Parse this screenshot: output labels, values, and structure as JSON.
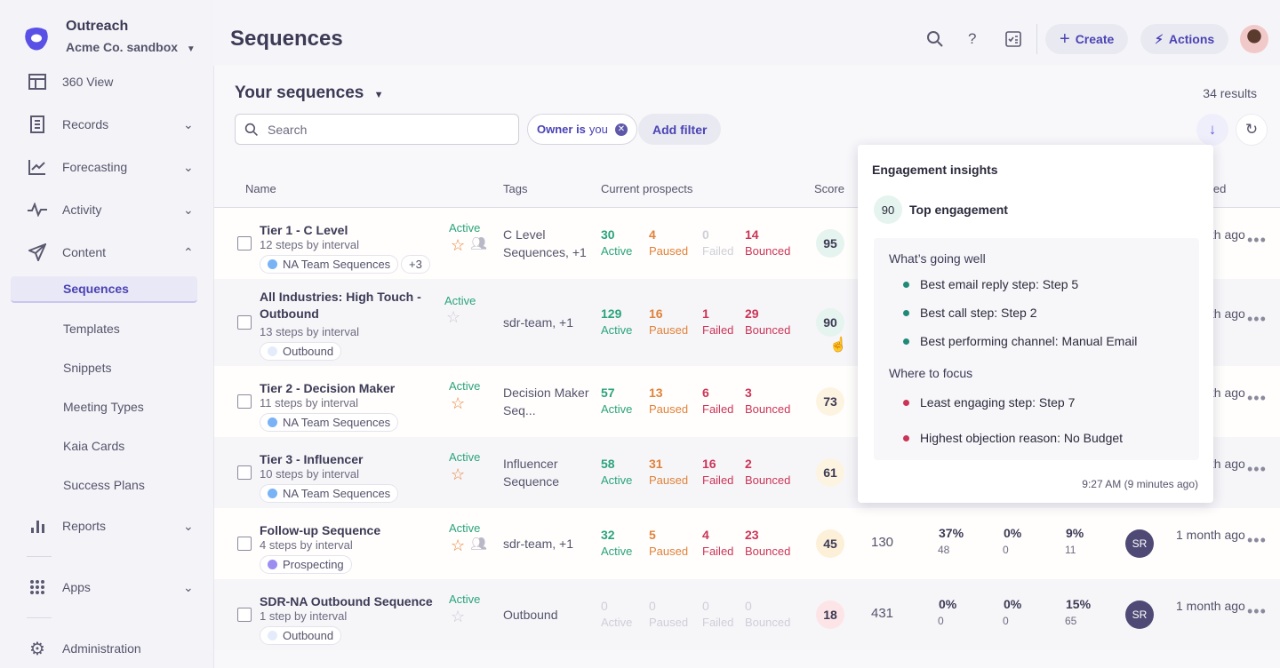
{
  "app": {
    "brand": "Outreach",
    "org": "Acme Co. sandbox"
  },
  "sidebar": {
    "items": [
      {
        "label": "360 View",
        "icon": "layout-icon"
      },
      {
        "label": "Records",
        "icon": "document-icon"
      },
      {
        "label": "Forecasting",
        "icon": "chart-line-icon"
      },
      {
        "label": "Activity",
        "icon": "pulse-icon"
      },
      {
        "label": "Content",
        "icon": "send-icon"
      },
      {
        "label": "Reports",
        "icon": "bar-chart-icon"
      },
      {
        "label": "Apps",
        "icon": "grid-icon"
      },
      {
        "label": "Administration",
        "icon": "gear-icon"
      }
    ],
    "content_sub": [
      "Sequences",
      "Templates",
      "Snippets",
      "Meeting Types",
      "Kaia Cards",
      "Success Plans"
    ]
  },
  "header": {
    "title": "Sequences",
    "create": "Create",
    "actions": "Actions"
  },
  "view": {
    "title": "Your sequences",
    "results": "34 results",
    "search_placeholder": "Search",
    "filter_owner": "Owner is",
    "filter_owner_value": "you",
    "add_filter": "Add filter"
  },
  "columns": {
    "name": "Name",
    "tags": "Tags",
    "prospects": "Current prospects",
    "score": "Score",
    "last_used": "Last used"
  },
  "prospect_labels": {
    "active": "Active",
    "paused": "Paused",
    "failed": "Failed",
    "bounced": "Bounced"
  },
  "rows": [
    {
      "name": "Tier 1 - C Level",
      "steps": "12 steps by interval",
      "chip": "NA Team Sequences",
      "chip_color": "#79b3f5",
      "extra": "+3",
      "status": "Active",
      "starred": true,
      "shared": true,
      "tags": "C Level Sequences, +1",
      "active": "30",
      "paused": "4",
      "failed": "0",
      "bounced": "14",
      "score": "95",
      "last_used": "1 month ago"
    },
    {
      "name": "All Industries: High Touch - Outbound",
      "steps": "13 steps by interval",
      "chip": "Outbound",
      "chip_color": "#e4ecfb",
      "status": "Active",
      "starred": false,
      "tags": "sdr-team, +1",
      "active": "129",
      "paused": "16",
      "failed": "1",
      "bounced": "29",
      "score": "90",
      "last_used": "1 month ago"
    },
    {
      "name": "Tier 2 - Decision Maker",
      "steps": "11 steps by interval",
      "chip": "NA Team Sequences",
      "chip_color": "#79b3f5",
      "status": "Active",
      "starred": true,
      "tags": "Decision Maker Seq...",
      "active": "57",
      "paused": "13",
      "failed": "6",
      "bounced": "3",
      "score": "73",
      "last_used": "1 month ago"
    },
    {
      "name": "Tier 3 - Influencer",
      "steps": "10 steps by interval",
      "chip": "NA Team Sequences",
      "chip_color": "#79b3f5",
      "status": "Active",
      "starred": true,
      "tags": "Influencer Sequence",
      "active": "58",
      "paused": "31",
      "failed": "16",
      "bounced": "2",
      "score": "61",
      "last_used": "1 month ago"
    },
    {
      "name": "Follow-up Sequence",
      "steps": "4 steps by interval",
      "chip": "Prospecting",
      "chip_color": "#9b8ef0",
      "status": "Active",
      "starred": true,
      "shared": true,
      "tags": "sdr-team, +1",
      "active": "32",
      "paused": "5",
      "failed": "4",
      "bounced": "23",
      "score": "45",
      "total": "130",
      "r1": "37%",
      "r1n": "48",
      "r2": "0%",
      "r2n": "0",
      "r3": "9%",
      "r3n": "11",
      "owner": "SR",
      "last_used": "1 month ago"
    },
    {
      "name": "SDR-NA Outbound Sequence",
      "steps": "1 step by interval",
      "chip": "Outbound",
      "chip_color": "#e4ecfb",
      "status": "Active",
      "starred": false,
      "tags": "Outbound",
      "active": "0",
      "paused": "0",
      "failed": "0",
      "bounced": "0",
      "score": "18",
      "total": "431",
      "r1": "0%",
      "r1n": "0",
      "r2": "0%",
      "r2n": "0",
      "r3": "15%",
      "r3n": "65",
      "owner": "SR",
      "last_used": "1 month ago"
    }
  ],
  "popover": {
    "title": "Engagement insights",
    "score": "90",
    "score_label": "Top engagement",
    "well_title": "What’s going well",
    "well": [
      "Best email reply step: Step 5",
      "Best call step: Step 2",
      "Best performing channel: Manual Email"
    ],
    "focus_title": "Where to focus",
    "focus": [
      "Least engaging step: Step 7",
      "Highest objection reason: No Budget"
    ],
    "timestamp": "9:27 AM (9 minutes ago)"
  },
  "colors": {
    "brand": "#5951e6",
    "active": "#2ba37c",
    "paused": "#e0823a",
    "failed": "#cc3456",
    "muted": "#c9c8d3"
  }
}
